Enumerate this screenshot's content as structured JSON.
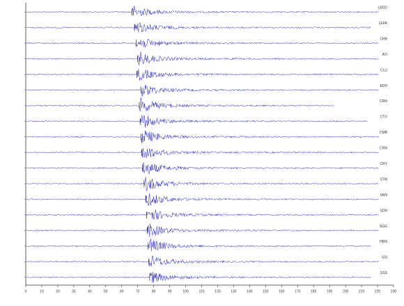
{
  "chart_data": {
    "type": "seismogram",
    "color": "#1a1adb",
    "xlim": [
      0,
      230
    ],
    "xticks": [
      0,
      10,
      20,
      30,
      40,
      50,
      60,
      70,
      80,
      90,
      100,
      110,
      120,
      130,
      140,
      150,
      160,
      170,
      180,
      190,
      200,
      210,
      220,
      230
    ],
    "series": [
      {
        "name": "LBDD",
        "arrival": 66.5,
        "end": 221,
        "amplitude": 7
      },
      {
        "name": "LEPA",
        "arrival": 68,
        "end": 216,
        "amplitude": 8
      },
      {
        "name": "CHB",
        "arrival": 69,
        "end": 221,
        "amplitude": 9
      },
      {
        "name": "ATI",
        "arrival": 70,
        "end": 221,
        "amplitude": 9
      },
      {
        "name": "CLU",
        "arrival": 69.5,
        "end": 221,
        "amplitude": 8
      },
      {
        "name": "EDH",
        "arrival": 72,
        "end": 221,
        "amplitude": 8
      },
      {
        "name": "CRN",
        "arrival": 71,
        "end": 193,
        "amplitude": 10
      },
      {
        "name": "CTO",
        "arrival": 71.5,
        "end": 214,
        "amplitude": 9
      },
      {
        "name": "CMB",
        "arrival": 72,
        "end": 221,
        "amplitude": 10
      },
      {
        "name": "CRN",
        "arrival": 72.5,
        "end": 221,
        "amplitude": 10
      },
      {
        "name": "CRY",
        "arrival": 73,
        "end": 221,
        "amplitude": 10
      },
      {
        "name": "STM",
        "arrival": 74,
        "end": 221,
        "amplitude": 10
      },
      {
        "name": "SNN",
        "arrival": 75,
        "end": 221,
        "amplitude": 9
      },
      {
        "name": "SDN",
        "arrival": 75.5,
        "end": 221,
        "amplitude": 10
      },
      {
        "name": "SGG",
        "arrival": 76,
        "end": 221,
        "amplitude": 9
      },
      {
        "name": "HRN",
        "arrival": 76.5,
        "end": 216,
        "amplitude": 10
      },
      {
        "name": "SSI",
        "arrival": 77,
        "end": 221,
        "amplitude": 8
      },
      {
        "name": "SSS",
        "arrival": 77.5,
        "end": 216,
        "amplitude": 7
      }
    ]
  }
}
